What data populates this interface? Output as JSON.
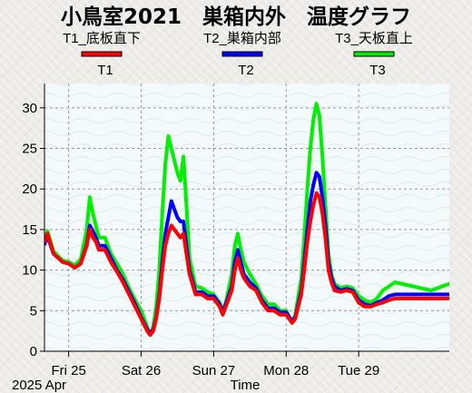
{
  "chart_data": {
    "type": "line",
    "title": "小鳥室2021　巣箱内外　温度グラフ",
    "xlabel": "Time",
    "ylabel": "",
    "ylim": [
      0,
      33
    ],
    "xlim": [
      "2025-04-24T16:00",
      "2025-04-30T06:00"
    ],
    "grid": true,
    "x_month_label": "2025 Apr",
    "x_ticks": [
      {
        "t": "2025-04-25T00:00",
        "label": "Fri 25"
      },
      {
        "t": "2025-04-26T00:00",
        "label": "Sat 26"
      },
      {
        "t": "2025-04-27T00:00",
        "label": "Sun 27"
      },
      {
        "t": "2025-04-28T00:00",
        "label": "Mon 28"
      },
      {
        "t": "2025-04-29T00:00",
        "label": "Tue 29"
      }
    ],
    "y_ticks": [
      0,
      5,
      10,
      15,
      20,
      25,
      30
    ],
    "legend_headers": [
      "T1_底板直下",
      "T2_巣箱内部",
      "T3_天板直上"
    ],
    "series": [
      {
        "name": "T1",
        "color": "#ff0000",
        "points": [
          [
            "2025-04-24T16:00",
            13.5
          ],
          [
            "2025-04-24T17:00",
            14.5
          ],
          [
            "2025-04-24T19:00",
            12.0
          ],
          [
            "2025-04-24T22:00",
            11.0
          ],
          [
            "2025-04-25T00:00",
            10.8
          ],
          [
            "2025-04-25T02:00",
            10.3
          ],
          [
            "2025-04-25T04:00",
            10.8
          ],
          [
            "2025-04-25T06:00",
            13.0
          ],
          [
            "2025-04-25T07:00",
            15.0
          ],
          [
            "2025-04-25T08:00",
            14.0
          ],
          [
            "2025-04-25T09:00",
            13.5
          ],
          [
            "2025-04-25T10:00",
            12.5
          ],
          [
            "2025-04-25T12:00",
            12.5
          ],
          [
            "2025-04-25T14:00",
            11.0
          ],
          [
            "2025-04-25T16:00",
            9.8
          ],
          [
            "2025-04-25T18:00",
            8.5
          ],
          [
            "2025-04-25T20:00",
            7.0
          ],
          [
            "2025-04-25T22:00",
            5.5
          ],
          [
            "2025-04-26T00:00",
            4.0
          ],
          [
            "2025-04-26T02:00",
            2.5
          ],
          [
            "2025-04-26T03:00",
            2.0
          ],
          [
            "2025-04-26T04:00",
            2.5
          ],
          [
            "2025-04-26T05:00",
            4.0
          ],
          [
            "2025-04-26T06:00",
            6.5
          ],
          [
            "2025-04-26T07:00",
            10.0
          ],
          [
            "2025-04-26T08:00",
            13.0
          ],
          [
            "2025-04-26T09:00",
            14.5
          ],
          [
            "2025-04-26T10:00",
            15.5
          ],
          [
            "2025-04-26T11:00",
            15.0
          ],
          [
            "2025-04-26T12:00",
            14.5
          ],
          [
            "2025-04-26T13:00",
            14.0
          ],
          [
            "2025-04-26T14:00",
            14.5
          ],
          [
            "2025-04-26T15:00",
            12.0
          ],
          [
            "2025-04-26T16:00",
            9.5
          ],
          [
            "2025-04-26T18:00",
            7.0
          ],
          [
            "2025-04-26T20:00",
            7.0
          ],
          [
            "2025-04-26T22:00",
            6.5
          ],
          [
            "2025-04-27T00:00",
            6.5
          ],
          [
            "2025-04-27T02:00",
            5.5
          ],
          [
            "2025-04-27T03:00",
            4.5
          ],
          [
            "2025-04-27T04:00",
            5.5
          ],
          [
            "2025-04-27T06:00",
            7.5
          ],
          [
            "2025-04-27T07:00",
            10.0
          ],
          [
            "2025-04-27T08:00",
            11.5
          ],
          [
            "2025-04-27T09:00",
            10.0
          ],
          [
            "2025-04-27T10:00",
            9.0
          ],
          [
            "2025-04-27T12:00",
            8.0
          ],
          [
            "2025-04-27T14:00",
            7.5
          ],
          [
            "2025-04-27T16:00",
            6.0
          ],
          [
            "2025-04-27T18:00",
            5.0
          ],
          [
            "2025-04-27T20:00",
            5.0
          ],
          [
            "2025-04-27T22:00",
            4.5
          ],
          [
            "2025-04-28T00:00",
            4.5
          ],
          [
            "2025-04-28T02:00",
            3.5
          ],
          [
            "2025-04-28T03:00",
            4.0
          ],
          [
            "2025-04-28T05:00",
            7.0
          ],
          [
            "2025-04-28T06:00",
            10.0
          ],
          [
            "2025-04-28T07:00",
            13.5
          ],
          [
            "2025-04-28T08:00",
            16.0
          ],
          [
            "2025-04-28T09:00",
            18.0
          ],
          [
            "2025-04-28T10:00",
            19.5
          ],
          [
            "2025-04-28T11:00",
            19.0
          ],
          [
            "2025-04-28T12:00",
            17.0
          ],
          [
            "2025-04-28T13:00",
            14.0
          ],
          [
            "2025-04-28T14:00",
            10.0
          ],
          [
            "2025-04-28T15:00",
            8.5
          ],
          [
            "2025-04-28T16:00",
            7.5
          ],
          [
            "2025-04-28T18:00",
            7.3
          ],
          [
            "2025-04-28T20:00",
            7.5
          ],
          [
            "2025-04-28T22:00",
            7.3
          ],
          [
            "2025-04-29T00:00",
            6.0
          ],
          [
            "2025-04-29T02:00",
            5.5
          ],
          [
            "2025-04-29T04:00",
            5.5
          ],
          [
            "2025-04-29T06:00",
            5.8
          ],
          [
            "2025-04-29T08:00",
            6.0
          ],
          [
            "2025-04-29T10:00",
            6.3
          ],
          [
            "2025-04-29T12:00",
            6.5
          ],
          [
            "2025-04-30T06:00",
            6.5
          ]
        ]
      },
      {
        "name": "T2",
        "color": "#0000ff",
        "points": [
          [
            "2025-04-24T16:00",
            13.2
          ],
          [
            "2025-04-24T17:00",
            14.2
          ],
          [
            "2025-04-24T19:00",
            12.0
          ],
          [
            "2025-04-24T22:00",
            11.0
          ],
          [
            "2025-04-25T00:00",
            10.8
          ],
          [
            "2025-04-25T02:00",
            10.3
          ],
          [
            "2025-04-25T04:00",
            10.8
          ],
          [
            "2025-04-25T06:00",
            13.2
          ],
          [
            "2025-04-25T07:00",
            15.5
          ],
          [
            "2025-04-25T08:00",
            14.8
          ],
          [
            "2025-04-25T09:00",
            14.0
          ],
          [
            "2025-04-25T10:00",
            13.0
          ],
          [
            "2025-04-25T12:00",
            13.0
          ],
          [
            "2025-04-25T14:00",
            11.5
          ],
          [
            "2025-04-25T16:00",
            10.0
          ],
          [
            "2025-04-25T18:00",
            8.8
          ],
          [
            "2025-04-25T20:00",
            7.3
          ],
          [
            "2025-04-25T22:00",
            5.8
          ],
          [
            "2025-04-26T00:00",
            4.2
          ],
          [
            "2025-04-26T02:00",
            2.7
          ],
          [
            "2025-04-26T03:00",
            2.2
          ],
          [
            "2025-04-26T04:00",
            2.7
          ],
          [
            "2025-04-26T05:00",
            4.2
          ],
          [
            "2025-04-26T06:00",
            7.0
          ],
          [
            "2025-04-26T07:00",
            11.0
          ],
          [
            "2025-04-26T08:00",
            14.5
          ],
          [
            "2025-04-26T09:00",
            16.5
          ],
          [
            "2025-04-26T10:00",
            18.5
          ],
          [
            "2025-04-26T11:00",
            17.5
          ],
          [
            "2025-04-26T12:00",
            16.5
          ],
          [
            "2025-04-26T13:00",
            16.0
          ],
          [
            "2025-04-26T14:00",
            16.0
          ],
          [
            "2025-04-26T15:00",
            13.0
          ],
          [
            "2025-04-26T16:00",
            10.0
          ],
          [
            "2025-04-26T18:00",
            7.3
          ],
          [
            "2025-04-26T20:00",
            7.3
          ],
          [
            "2025-04-26T22:00",
            6.8
          ],
          [
            "2025-04-27T00:00",
            6.8
          ],
          [
            "2025-04-27T02:00",
            5.8
          ],
          [
            "2025-04-27T03:00",
            4.8
          ],
          [
            "2025-04-27T04:00",
            5.8
          ],
          [
            "2025-04-27T06:00",
            8.0
          ],
          [
            "2025-04-27T07:00",
            11.0
          ],
          [
            "2025-04-27T08:00",
            12.5
          ],
          [
            "2025-04-27T09:00",
            11.0
          ],
          [
            "2025-04-27T10:00",
            9.5
          ],
          [
            "2025-04-27T12:00",
            8.5
          ],
          [
            "2025-04-27T14:00",
            7.8
          ],
          [
            "2025-04-27T16:00",
            6.3
          ],
          [
            "2025-04-27T18:00",
            5.3
          ],
          [
            "2025-04-27T20:00",
            5.3
          ],
          [
            "2025-04-27T22:00",
            4.8
          ],
          [
            "2025-04-28T00:00",
            4.8
          ],
          [
            "2025-04-28T02:00",
            3.7
          ],
          [
            "2025-04-28T03:00",
            4.2
          ],
          [
            "2025-04-28T05:00",
            7.5
          ],
          [
            "2025-04-28T06:00",
            11.0
          ],
          [
            "2025-04-28T07:00",
            15.0
          ],
          [
            "2025-04-28T08:00",
            18.5
          ],
          [
            "2025-04-28T09:00",
            20.5
          ],
          [
            "2025-04-28T10:00",
            22.0
          ],
          [
            "2025-04-28T11:00",
            21.5
          ],
          [
            "2025-04-28T12:00",
            19.0
          ],
          [
            "2025-04-28T13:00",
            15.5
          ],
          [
            "2025-04-28T14:00",
            11.0
          ],
          [
            "2025-04-28T15:00",
            9.0
          ],
          [
            "2025-04-28T16:00",
            8.0
          ],
          [
            "2025-04-28T18:00",
            7.5
          ],
          [
            "2025-04-28T20:00",
            7.7
          ],
          [
            "2025-04-28T22:00",
            7.5
          ],
          [
            "2025-04-29T00:00",
            6.3
          ],
          [
            "2025-04-29T02:00",
            5.8
          ],
          [
            "2025-04-29T04:00",
            5.6
          ],
          [
            "2025-04-29T06:00",
            6.0
          ],
          [
            "2025-04-29T08:00",
            6.3
          ],
          [
            "2025-04-29T10:00",
            6.8
          ],
          [
            "2025-04-29T12:00",
            7.0
          ],
          [
            "2025-04-30T06:00",
            7.0
          ]
        ]
      },
      {
        "name": "T3",
        "color": "#00ee00",
        "points": [
          [
            "2025-04-24T16:00",
            13.8
          ],
          [
            "2025-04-24T17:00",
            14.8
          ],
          [
            "2025-04-24T19:00",
            12.3
          ],
          [
            "2025-04-24T22:00",
            11.2
          ],
          [
            "2025-04-25T00:00",
            11.0
          ],
          [
            "2025-04-25T02:00",
            10.6
          ],
          [
            "2025-04-25T04:00",
            11.3
          ],
          [
            "2025-04-25T06:00",
            15.0
          ],
          [
            "2025-04-25T07:00",
            19.0
          ],
          [
            "2025-04-25T08:00",
            17.0
          ],
          [
            "2025-04-25T09:00",
            15.5
          ],
          [
            "2025-04-25T10:00",
            14.0
          ],
          [
            "2025-04-25T12:00",
            14.0
          ],
          [
            "2025-04-25T14:00",
            12.0
          ],
          [
            "2025-04-25T16:00",
            10.8
          ],
          [
            "2025-04-25T18:00",
            9.5
          ],
          [
            "2025-04-25T20:00",
            7.8
          ],
          [
            "2025-04-25T22:00",
            6.3
          ],
          [
            "2025-04-26T00:00",
            5.0
          ],
          [
            "2025-04-26T02:00",
            3.0
          ],
          [
            "2025-04-26T03:00",
            2.0
          ],
          [
            "2025-04-26T04:00",
            3.0
          ],
          [
            "2025-04-26T05:00",
            5.5
          ],
          [
            "2025-04-26T06:00",
            10.0
          ],
          [
            "2025-04-26T07:00",
            17.0
          ],
          [
            "2025-04-26T08:00",
            23.0
          ],
          [
            "2025-04-26T09:00",
            26.5
          ],
          [
            "2025-04-26T10:00",
            25.0
          ],
          [
            "2025-04-26T11:00",
            23.5
          ],
          [
            "2025-04-26T12:00",
            22.0
          ],
          [
            "2025-04-26T13:00",
            21.0
          ],
          [
            "2025-04-26T14:00",
            24.0
          ],
          [
            "2025-04-26T15:00",
            18.0
          ],
          [
            "2025-04-26T16:00",
            11.5
          ],
          [
            "2025-04-26T18:00",
            8.0
          ],
          [
            "2025-04-26T20:00",
            7.8
          ],
          [
            "2025-04-26T22:00",
            7.3
          ],
          [
            "2025-04-27T00:00",
            7.0
          ],
          [
            "2025-04-27T02:00",
            6.0
          ],
          [
            "2025-04-27T03:00",
            5.0
          ],
          [
            "2025-04-27T04:00",
            6.0
          ],
          [
            "2025-04-27T06:00",
            9.5
          ],
          [
            "2025-04-27T07:00",
            13.0
          ],
          [
            "2025-04-27T08:00",
            14.5
          ],
          [
            "2025-04-27T09:00",
            12.5
          ],
          [
            "2025-04-27T10:00",
            11.0
          ],
          [
            "2025-04-27T12:00",
            9.5
          ],
          [
            "2025-04-27T14:00",
            8.3
          ],
          [
            "2025-04-27T16:00",
            6.8
          ],
          [
            "2025-04-27T18:00",
            5.8
          ],
          [
            "2025-04-27T20:00",
            5.8
          ],
          [
            "2025-04-27T22:00",
            5.0
          ],
          [
            "2025-04-28T00:00",
            5.0
          ],
          [
            "2025-04-28T02:00",
            3.5
          ],
          [
            "2025-04-28T03:00",
            4.5
          ],
          [
            "2025-04-28T05:00",
            9.0
          ],
          [
            "2025-04-28T06:00",
            14.0
          ],
          [
            "2025-04-28T07:00",
            20.0
          ],
          [
            "2025-04-28T08:00",
            25.0
          ],
          [
            "2025-04-28T09:00",
            28.5
          ],
          [
            "2025-04-28T10:00",
            30.5
          ],
          [
            "2025-04-28T11:00",
            29.0
          ],
          [
            "2025-04-28T12:00",
            24.0
          ],
          [
            "2025-04-28T13:00",
            18.0
          ],
          [
            "2025-04-28T14:00",
            12.0
          ],
          [
            "2025-04-28T15:00",
            9.5
          ],
          [
            "2025-04-28T16:00",
            8.3
          ],
          [
            "2025-04-28T18:00",
            7.8
          ],
          [
            "2025-04-28T20:00",
            8.0
          ],
          [
            "2025-04-28T22:00",
            7.8
          ],
          [
            "2025-04-29T00:00",
            6.8
          ],
          [
            "2025-04-29T02:00",
            6.3
          ],
          [
            "2025-04-29T04:00",
            6.0
          ],
          [
            "2025-04-29T06:00",
            6.5
          ],
          [
            "2025-04-29T08:00",
            7.5
          ],
          [
            "2025-04-29T10:00",
            8.0
          ],
          [
            "2025-04-29T12:00",
            8.5
          ],
          [
            "2025-04-29T18:00",
            8.0
          ],
          [
            "2025-04-30T00:00",
            7.5
          ],
          [
            "2025-04-30T06:00",
            8.3
          ]
        ]
      }
    ]
  }
}
